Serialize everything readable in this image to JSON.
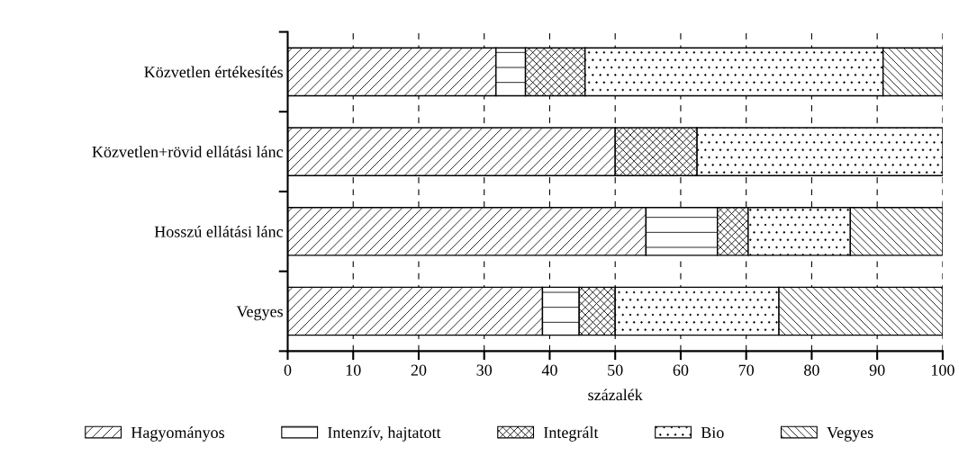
{
  "chart_data": {
    "type": "bar",
    "orientation": "horizontal",
    "stacked": true,
    "xlabel": "százalék",
    "categories": [
      "Közvetlen értékesítés",
      "Közvetlen+rövid ellátási lánc",
      "Hosszú ellátási lánc",
      "Vegyes"
    ],
    "series": [
      {
        "name": "Hagyományos",
        "color": "#000000",
        "values": [
          31.8,
          50,
          54.7,
          38.9
        ]
      },
      {
        "name": "Intenzív, hajtatott",
        "color": "#000000",
        "values": [
          4.5,
          0,
          10.9,
          5.6
        ]
      },
      {
        "name": "Integrált",
        "color": "#000000",
        "values": [
          9.1,
          12.5,
          4.7,
          5.5
        ]
      },
      {
        "name": "Bio",
        "color": "#000000",
        "values": [
          45.5,
          37.5,
          15.6,
          25
        ]
      },
      {
        "name": "Vegyes",
        "color": "#000000",
        "values": [
          9.1,
          0,
          14.1,
          25
        ]
      }
    ],
    "xlim": [
      0,
      100
    ],
    "xticks": [
      0,
      10,
      20,
      30,
      40,
      50,
      60,
      70,
      80,
      90,
      100
    ],
    "grid": "x",
    "legend": "bottom"
  }
}
